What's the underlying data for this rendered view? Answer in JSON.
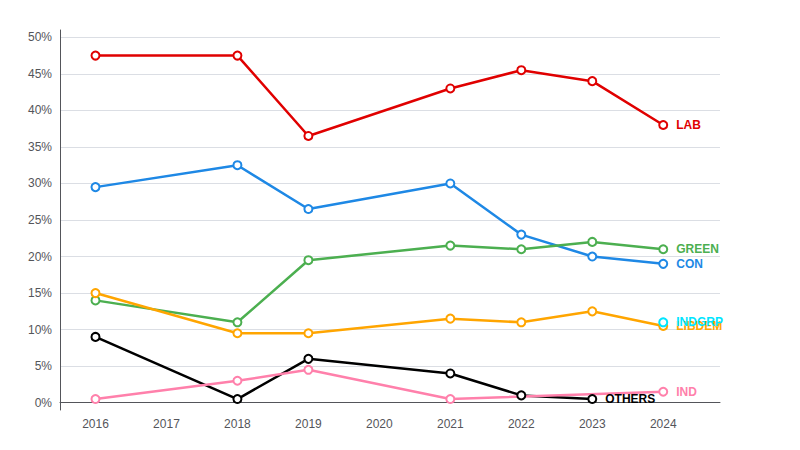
{
  "chart_data": {
    "type": "line",
    "x": [
      2016,
      2018,
      2019,
      2021,
      2022,
      2023,
      2024
    ],
    "series": [
      {
        "name": "LAB",
        "color": "#e00000",
        "values": [
          47.5,
          47.5,
          36.5,
          43.0,
          45.5,
          44.0,
          38.0
        ]
      },
      {
        "name": "CON",
        "color": "#1e88e5",
        "values": [
          29.5,
          32.5,
          26.5,
          30.0,
          23.0,
          20.0,
          19.0
        ]
      },
      {
        "name": "GREEN",
        "color": "#4caf50",
        "values": [
          14.0,
          11.0,
          19.5,
          21.5,
          21.0,
          22.0,
          21.0
        ]
      },
      {
        "name": "LIBDEM",
        "color": "#ffa500",
        "values": [
          15.0,
          9.5,
          9.5,
          11.5,
          11.0,
          12.5,
          10.5
        ]
      },
      {
        "name": "OTHERS",
        "color": "#000000",
        "values": [
          9.0,
          0.5,
          6.0,
          4.0,
          1.0,
          0.5,
          null
        ]
      },
      {
        "name": "IND",
        "color": "#ff80ab",
        "values": [
          0.5,
          3.0,
          4.5,
          0.5,
          null,
          null,
          1.5
        ]
      },
      {
        "name": "INDGRP",
        "color": "#00e5ff",
        "values": [
          null,
          null,
          null,
          null,
          null,
          null,
          11.0
        ]
      }
    ],
    "xlim": [
      2015.5,
      2024.8
    ],
    "xticks": [
      2016,
      2017,
      2018,
      2019,
      2020,
      2021,
      2022,
      2023,
      2024
    ],
    "ylim": [
      -1,
      51
    ],
    "yticks": [
      {
        "value": 0,
        "label": "0%"
      },
      {
        "value": 5,
        "label": "5%"
      },
      {
        "value": 10,
        "label": "10%"
      },
      {
        "value": 15,
        "label": "15%"
      },
      {
        "value": 20,
        "label": "20%"
      },
      {
        "value": 25,
        "label": "25%"
      },
      {
        "value": 30,
        "label": "30%"
      },
      {
        "value": 35,
        "label": "35%"
      },
      {
        "value": 40,
        "label": "40%"
      },
      {
        "value": 45,
        "label": "45%"
      },
      {
        "value": 50,
        "label": "50%"
      }
    ],
    "grid": true,
    "marker": "circle"
  }
}
